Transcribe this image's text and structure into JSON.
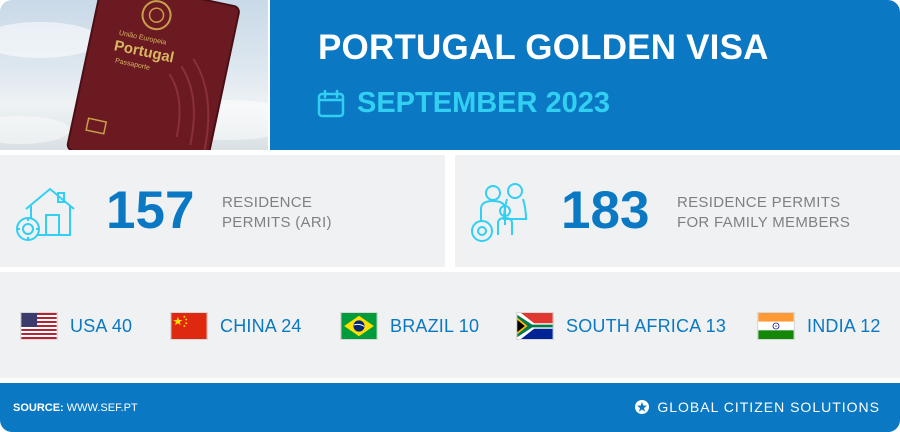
{
  "header": {
    "title": "PORTUGAL GOLDEN VISA",
    "date": "SEPTEMBER 2023",
    "passport_text": [
      "União Europeia",
      "Portugal",
      "Passaporte"
    ]
  },
  "stats": [
    {
      "value": "157",
      "label_line1": "RESIDENCE",
      "label_line2": "PERMITS (ARI)",
      "icon": "house-icon"
    },
    {
      "value": "183",
      "label_line1": "RESIDENCE PERMITS",
      "label_line2": "FOR FAMILY MEMBERS",
      "icon": "family-icon"
    }
  ],
  "countries": [
    {
      "label": "USA 40",
      "flag": "usa-flag"
    },
    {
      "label": "CHINA 24",
      "flag": "china-flag"
    },
    {
      "label": "BRAZIL 10",
      "flag": "brazil-flag"
    },
    {
      "label": "SOUTH AFRICA 13",
      "flag": "south-africa-flag"
    },
    {
      "label": "INDIA 12",
      "flag": "india-flag"
    }
  ],
  "footer": {
    "source_label": "SOURCE:",
    "source_value": "WWW.SEF.PT",
    "brand": "GLOBAL CITIZEN SOLUTIONS"
  },
  "colors": {
    "brand_blue": "#0a78c2",
    "accent_cyan": "#31d0f3",
    "card_bg": "#f0f1f3",
    "label_gray": "#7e8084"
  }
}
